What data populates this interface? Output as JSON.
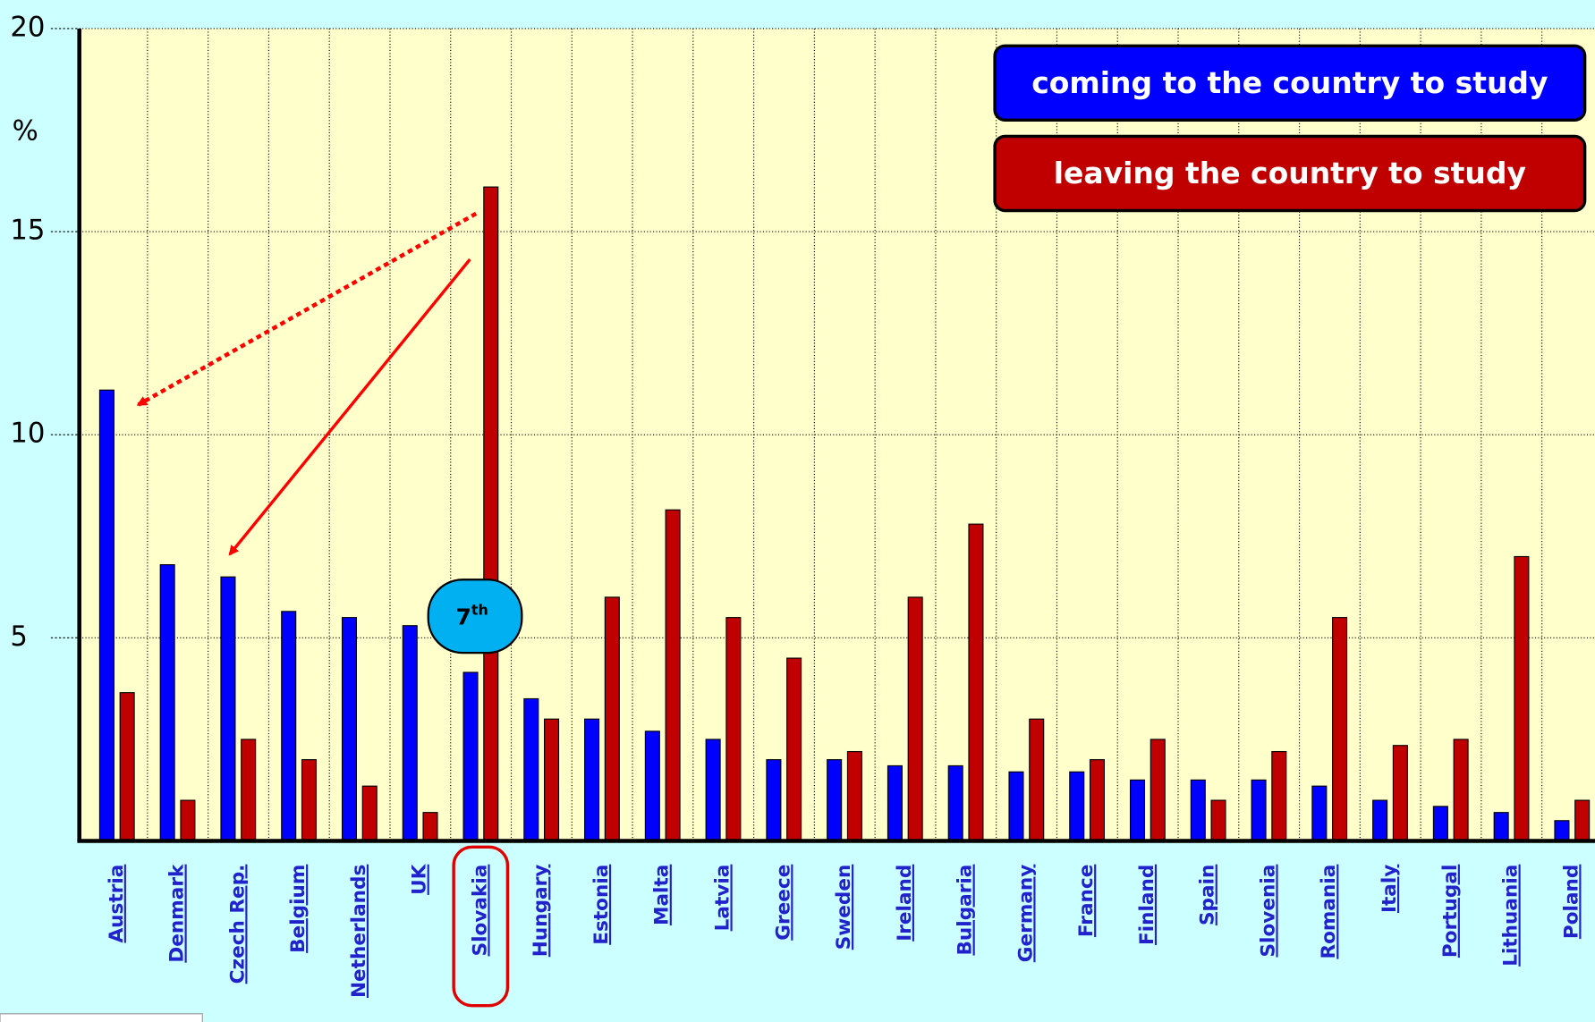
{
  "chart_data": {
    "type": "bar",
    "y_label": "%",
    "categories": [
      "Austria",
      "Denmark",
      "Czech Rep.",
      "Belgium",
      "Netherlands",
      "UK",
      "Slovakia",
      "Hungary",
      "Estonia",
      "Malta",
      "Latvia",
      "Greece",
      "Sweden",
      "Ireland",
      "Bulgaria",
      "Germany",
      "France",
      "Finland",
      "Spain",
      "Slovenia",
      "Romania",
      "Italy",
      "Portugal",
      "Lithuania",
      "Poland"
    ],
    "series": [
      {
        "name": "coming to the country to study",
        "color": "#0000ff",
        "values": [
          11.1,
          6.8,
          6.5,
          5.65,
          5.5,
          5.3,
          4.15,
          3.5,
          3.0,
          2.7,
          2.5,
          2.0,
          2.0,
          1.85,
          1.85,
          1.7,
          1.7,
          1.5,
          1.5,
          1.5,
          1.35,
          1.0,
          0.85,
          0.7,
          0.5
        ]
      },
      {
        "name": "leaving the country to study",
        "color": "#c00000",
        "values": [
          3.65,
          1.0,
          2.5,
          2.0,
          1.35,
          0.7,
          16.1,
          3.0,
          6.0,
          8.15,
          5.5,
          4.5,
          2.2,
          6.0,
          7.8,
          3.0,
          2.0,
          2.5,
          1.0,
          2.2,
          5.5,
          2.35,
          2.5,
          7.0,
          1.0
        ]
      }
    ],
    "ylim": [
      0,
      20
    ],
    "yticks": [
      5,
      10,
      15,
      20
    ],
    "grid": true,
    "rank_label": "7",
    "rank_suffix": "th"
  }
}
